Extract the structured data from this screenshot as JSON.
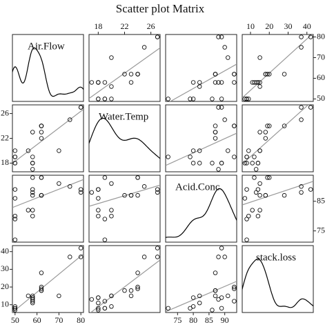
{
  "chart_data": {
    "type": "scatter_matrix",
    "title": "Scatter plot Matrix",
    "variables": [
      {
        "name": "Air.Flow",
        "values": [
          80,
          80,
          75,
          62,
          62,
          62,
          62,
          62,
          58,
          58,
          58,
          58,
          58,
          58,
          50,
          50,
          50,
          50,
          50,
          56,
          70
        ],
        "lim": [
          48.8,
          81.2
        ],
        "xticks": [
          50,
          60,
          70,
          80
        ],
        "yticks": [
          50,
          60,
          70,
          80
        ]
      },
      {
        "name": "Water.Temp",
        "values": [
          27,
          27,
          25,
          24,
          22,
          23,
          24,
          24,
          23,
          18,
          18,
          17,
          18,
          19,
          18,
          18,
          19,
          19,
          20,
          20,
          20
        ],
        "lim": [
          16.6,
          27.4
        ],
        "xticks": [
          18,
          22,
          26
        ],
        "yticks": [
          18,
          22,
          26
        ]
      },
      {
        "name": "Acid.Conc.",
        "values": [
          89,
          88,
          90,
          87,
          87,
          87,
          93,
          93,
          87,
          80,
          89,
          88,
          82,
          93,
          89,
          86,
          72,
          79,
          80,
          82,
          91
        ],
        "lim": [
          71.2,
          93.8
        ],
        "xticks": [
          75,
          80,
          85,
          90
        ],
        "yticks": [
          75,
          85
        ]
      },
      {
        "name": "stack.loss",
        "values": [
          42,
          37,
          37,
          28,
          18,
          18,
          19,
          20,
          15,
          14,
          14,
          13,
          11,
          12,
          8,
          7,
          8,
          8,
          9,
          15,
          15
        ],
        "lim": [
          5.6,
          43.4
        ],
        "xticks": [
          10,
          20,
          30,
          40
        ],
        "yticks": [
          10,
          20,
          30,
          40
        ]
      }
    ]
  }
}
